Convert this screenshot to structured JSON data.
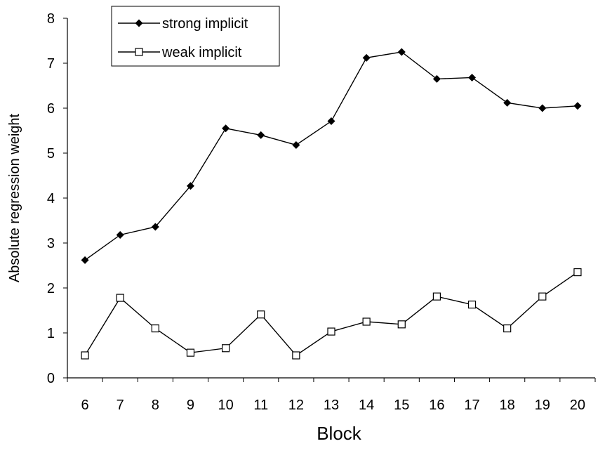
{
  "chart_data": {
    "type": "line",
    "title": "",
    "xlabel": "Block",
    "ylabel": "Absolute regression weight",
    "categories": [
      "6",
      "7",
      "8",
      "9",
      "10",
      "11",
      "12",
      "13",
      "14",
      "15",
      "16",
      "17",
      "18",
      "19",
      "20"
    ],
    "ylim": [
      0,
      8
    ],
    "yticks": [
      "0",
      "1",
      "2",
      "3",
      "4",
      "5",
      "6",
      "7",
      "8"
    ],
    "grid": false,
    "legend": "top-left",
    "series": [
      {
        "name": "strong implicit",
        "marker": "filled-diamond",
        "color": "#000000",
        "values": [
          2.62,
          3.18,
          3.36,
          4.27,
          5.55,
          5.4,
          5.18,
          5.71,
          7.12,
          7.25,
          6.65,
          6.68,
          6.12,
          6.0,
          6.05
        ]
      },
      {
        "name": "weak implicit",
        "marker": "open-square",
        "color": "#000000",
        "values": [
          0.5,
          1.78,
          1.1,
          0.56,
          0.66,
          1.41,
          0.5,
          1.03,
          1.25,
          1.19,
          1.81,
          1.63,
          1.1,
          1.81,
          2.35
        ]
      }
    ]
  }
}
